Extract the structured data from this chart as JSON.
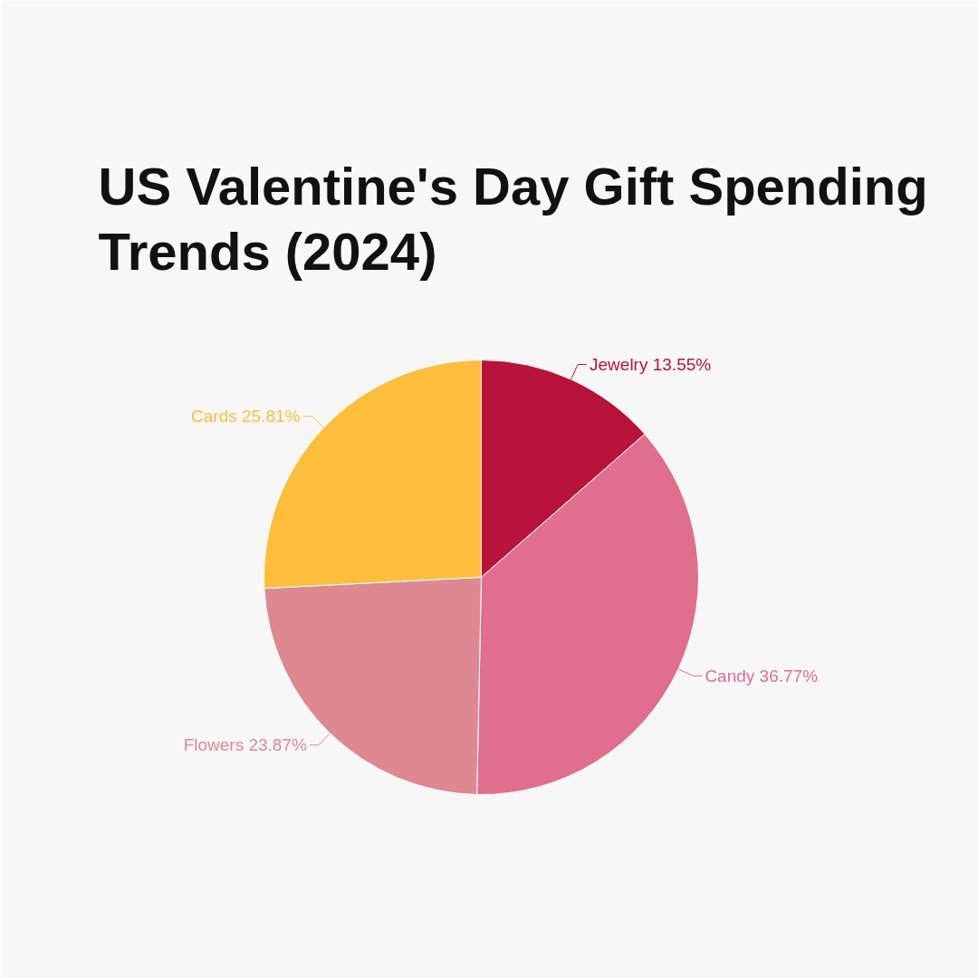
{
  "chart_data": {
    "type": "pie",
    "title": "US Valentine's Day Gift Spending Trends (2024)",
    "categories": [
      "Jewelry",
      "Candy",
      "Flowers",
      "Cards"
    ],
    "values": [
      13.55,
      36.77,
      23.87,
      25.81
    ],
    "value_labels": [
      "13.55%",
      "36.77%",
      "23.87%",
      "25.81%"
    ],
    "colors": [
      "#b8133c",
      "#e06e8e",
      "#de8892",
      "#fdbe3e"
    ]
  }
}
